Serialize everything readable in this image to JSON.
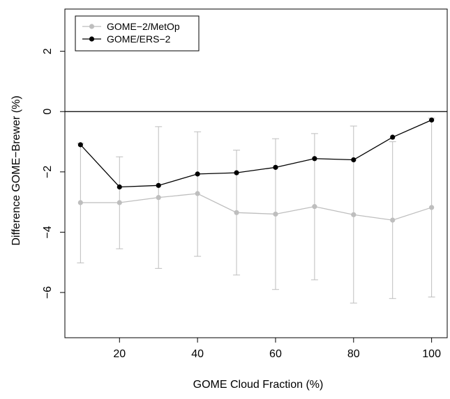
{
  "chart_data": {
    "type": "line",
    "title": "",
    "xlabel": "GOME Cloud Fraction (%)",
    "ylabel": "Difference GOME−Brewer (%)",
    "xlim": [
      6,
      104
    ],
    "ylim": [
      -7.5,
      3.4
    ],
    "x_ticks": [
      20,
      40,
      60,
      80,
      100
    ],
    "x_tick_labels": [
      "20",
      "40",
      "60",
      "80",
      "100"
    ],
    "y_ticks": [
      -6,
      -4,
      -2,
      0,
      2
    ],
    "y_tick_labels": [
      "−6",
      "−4",
      "−2",
      "0",
      "2"
    ],
    "reference_line": 0,
    "legend_position": "top-left",
    "x": [
      10,
      20,
      30,
      40,
      50,
      60,
      70,
      80,
      90,
      100
    ],
    "series": [
      {
        "name": "GOME−2/MetOp",
        "color": "#bebebe",
        "values": [
          -3.02,
          -3.02,
          -2.85,
          -2.72,
          -3.35,
          -3.4,
          -3.15,
          -3.42,
          -3.6,
          -3.18
        ],
        "error_lower": [
          -5.02,
          -4.55,
          -5.2,
          -4.8,
          -5.42,
          -5.9,
          -5.58,
          -6.35,
          -6.2,
          -6.15
        ],
        "error_upper": [
          -1.05,
          -1.5,
          -0.5,
          -0.67,
          -1.28,
          -0.9,
          -0.73,
          -0.48,
          -1.0,
          -0.22
        ]
      },
      {
        "name": "GOME/ERS−2",
        "color": "#000000",
        "values": [
          -1.1,
          -2.5,
          -2.45,
          -2.07,
          -2.03,
          -1.85,
          -1.56,
          -1.6,
          -0.85,
          -0.28
        ]
      }
    ]
  }
}
